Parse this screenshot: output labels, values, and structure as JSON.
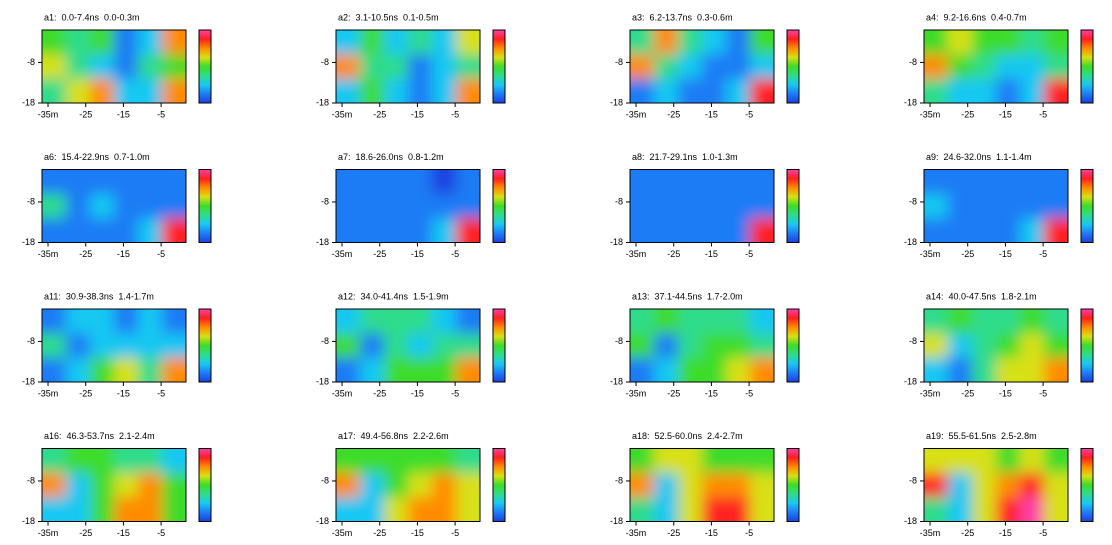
{
  "chart_data": {
    "type": "heatmap",
    "xlim": [
      -36.6,
      1.6
    ],
    "ylim": [
      -18,
      0
    ],
    "xticks": [
      {
        "value": -35,
        "label": "-35m"
      },
      -25,
      -15,
      -5
    ],
    "yticks": [
      -8,
      -18
    ],
    "colorscale": [
      "#1c3fe0",
      "#1e7cf5",
      "#19c8f2",
      "#2fdc8c",
      "#3ddc2a",
      "#d8e014",
      "#ff8c00",
      "#ff2020",
      "#ff40a8"
    ],
    "panels": [
      {
        "title": "a1:  0.0-7.4ns  0.0-0.3m",
        "values": [
          [
            4,
            3,
            4,
            1,
            2,
            6
          ],
          [
            5,
            3,
            2,
            1,
            3,
            4
          ],
          [
            3,
            5,
            6,
            2,
            2,
            6
          ]
        ]
      },
      {
        "title": "a2:  3.1-10.5ns  0.1-0.5m",
        "values": [
          [
            2,
            4,
            2,
            3,
            2,
            5
          ],
          [
            6,
            3,
            3,
            1,
            2,
            3
          ],
          [
            2,
            4,
            2,
            1,
            2,
            6
          ]
        ]
      },
      {
        "title": "a3:  6.2-13.7ns  0.3-0.6m",
        "values": [
          [
            3,
            6,
            3,
            2,
            1,
            4
          ],
          [
            6,
            3,
            2,
            1,
            1,
            2
          ],
          [
            1,
            2,
            1,
            1,
            2,
            7
          ]
        ]
      },
      {
        "title": "a4:  9.2-16.6ns  0.4-0.7m",
        "values": [
          [
            4,
            5,
            4,
            4,
            3,
            4
          ],
          [
            6,
            4,
            3,
            2,
            2,
            3
          ],
          [
            3,
            2,
            2,
            1,
            2,
            7
          ]
        ]
      },
      {
        "title": "a6:  15.4-22.9ns  0.7-1.0m",
        "values": [
          [
            1,
            1,
            1,
            1,
            1,
            1
          ],
          [
            3,
            1,
            2,
            1,
            1,
            1
          ],
          [
            1,
            1,
            1,
            1,
            2,
            7
          ]
        ]
      },
      {
        "title": "a7:  18.6-26.0ns  0.8-1.2m",
        "values": [
          [
            1,
            1,
            1,
            1,
            0,
            1
          ],
          [
            1,
            1,
            1,
            1,
            1,
            1
          ],
          [
            1,
            1,
            1,
            1,
            2,
            7
          ]
        ]
      },
      {
        "title": "a8:  21.7-29.1ns  1.0-1.3m",
        "values": [
          [
            1,
            1,
            1,
            1,
            1,
            1
          ],
          [
            1,
            1,
            1,
            1,
            1,
            1
          ],
          [
            1,
            1,
            1,
            1,
            1,
            7
          ]
        ]
      },
      {
        "title": "a9:  24.6-32.0ns  1.1-1.4m",
        "values": [
          [
            1,
            1,
            1,
            1,
            1,
            1
          ],
          [
            2,
            1,
            1,
            1,
            1,
            1
          ],
          [
            1,
            1,
            1,
            1,
            2,
            7
          ]
        ]
      },
      {
        "title": "a11:  30.9-38.3ns  1.4-1.7m",
        "values": [
          [
            1,
            2,
            2,
            1,
            2,
            1
          ],
          [
            3,
            1,
            2,
            2,
            2,
            2
          ],
          [
            1,
            2,
            4,
            5,
            3,
            6
          ]
        ]
      },
      {
        "title": "a12:  34.0-41.4ns  1.5-1.9m",
        "values": [
          [
            2,
            3,
            3,
            3,
            2,
            1
          ],
          [
            4,
            1,
            3,
            2,
            3,
            3
          ],
          [
            1,
            2,
            4,
            4,
            4,
            6
          ]
        ]
      },
      {
        "title": "a13:  37.1-44.5ns  1.7-2.0m",
        "values": [
          [
            3,
            4,
            3,
            3,
            3,
            2
          ],
          [
            4,
            1,
            3,
            4,
            4,
            3
          ],
          [
            1,
            2,
            4,
            4,
            5,
            6
          ]
        ]
      },
      {
        "title": "a14:  40.0-47.5ns  1.8-2.1m",
        "values": [
          [
            3,
            4,
            3,
            3,
            4,
            3
          ],
          [
            5,
            2,
            3,
            4,
            5,
            4
          ],
          [
            2,
            1,
            3,
            5,
            5,
            6
          ]
        ]
      },
      {
        "title": "a16:  46.3-53.7ns  2.1-2.4m",
        "values": [
          [
            3,
            4,
            4,
            3,
            3,
            2
          ],
          [
            6,
            2,
            4,
            5,
            6,
            4
          ],
          [
            2,
            2,
            4,
            6,
            6,
            4
          ]
        ]
      },
      {
        "title": "a17:  49.4-56.8ns  2.2-2.6m",
        "values": [
          [
            4,
            4,
            4,
            4,
            4,
            3
          ],
          [
            6,
            2,
            4,
            5,
            6,
            5
          ],
          [
            2,
            2,
            5,
            6,
            6,
            5
          ]
        ]
      },
      {
        "title": "a18:  52.5-60.0ns  2.4-2.7m",
        "values": [
          [
            4,
            5,
            5,
            4,
            4,
            4
          ],
          [
            6,
            2,
            5,
            6,
            6,
            5
          ],
          [
            3,
            2,
            5,
            7,
            7,
            5
          ]
        ]
      },
      {
        "title": "a19:  55.5-61.5ns  2.5-2.8m",
        "values": [
          [
            5,
            5,
            5,
            4,
            5,
            4
          ],
          [
            7,
            2,
            5,
            6,
            7,
            5
          ],
          [
            3,
            2,
            5,
            7,
            8,
            5
          ]
        ]
      }
    ]
  }
}
